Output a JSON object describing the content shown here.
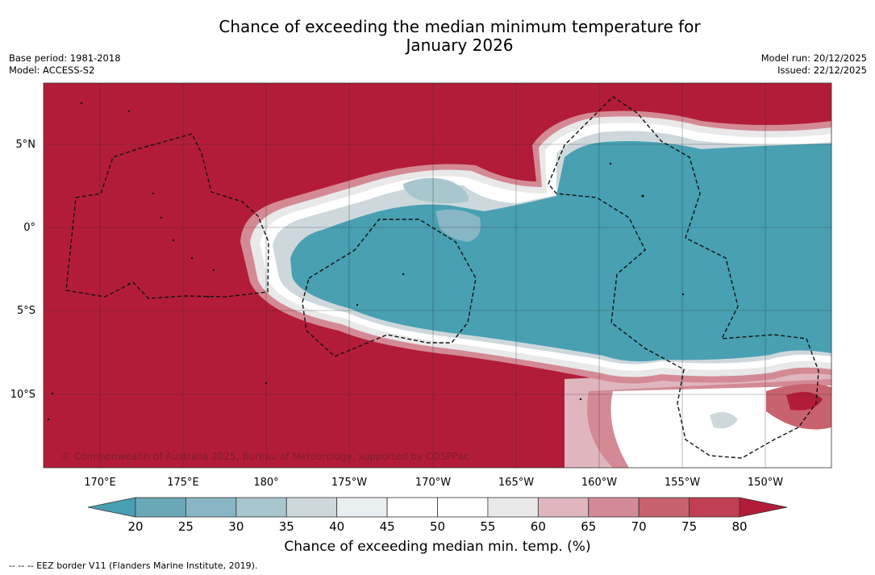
{
  "title": {
    "line1": "Chance of exceeding the median minimum temperature for",
    "line2": "January 2026"
  },
  "meta_left": {
    "base_period": "Base period: 1981-2018",
    "model": "Model: ACCESS-S2"
  },
  "meta_right": {
    "model_run": "Model run: 20/12/2025",
    "issued": "Issued: 22/12/2025"
  },
  "map": {
    "lat_labels": [
      "5°N",
      "0°",
      "5°S",
      "10°S"
    ],
    "lon_labels": [
      "170°E",
      "175°E",
      "180°",
      "175°W",
      "170°W",
      "165°W",
      "160°W",
      "155°W",
      "150°W"
    ],
    "copyright": "© Commonwealth of Australia 2025, Bureau of Meteorology, supported by COSPPac",
    "colors": {
      "high": "#b31c39",
      "low": "#48a0b2",
      "neutral": "#ffffff"
    }
  },
  "colorbar": {
    "ticks": [
      "20",
      "25",
      "30",
      "35",
      "40",
      "45",
      "50",
      "55",
      "60",
      "65",
      "70",
      "75",
      "80"
    ],
    "colors": [
      "#6aa8b8",
      "#88b6c4",
      "#a8c6cd",
      "#ced8dc",
      "#e9eef1",
      "#ffffff",
      "#ffffff",
      "#e9e9ea",
      "#dfb6bd",
      "#d48a95",
      "#c9626f",
      "#c03f52"
    ],
    "under_color": "#48a0b2",
    "over_color": "#b31c39",
    "label": "Chance of exceeding median min. temp. (%)"
  },
  "footer": {
    "legend": "--  --  -- EEZ border V11 (Flanders Marine Institute, 2019)."
  }
}
